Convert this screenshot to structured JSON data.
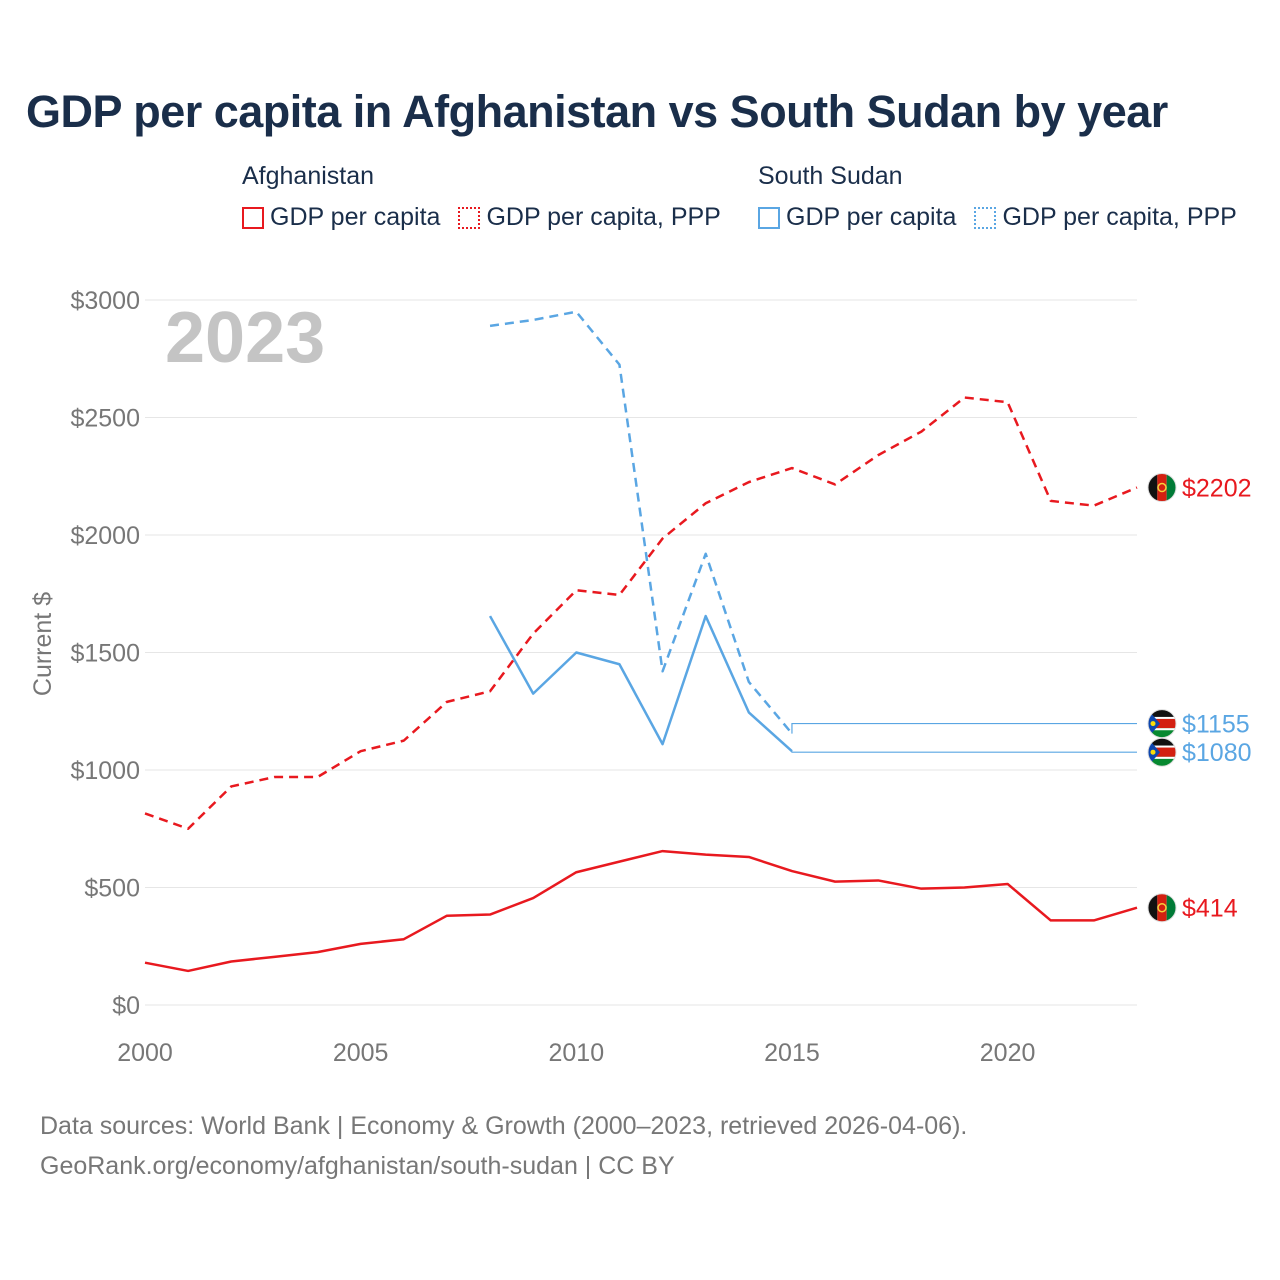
{
  "title": "GDP per capita in Afghanistan vs South Sudan by year",
  "legend": {
    "groups": [
      {
        "name": "Afghanistan",
        "color": "#e8191f",
        "items": [
          {
            "label": "GDP per capita",
            "style": "solid"
          },
          {
            "label": "GDP per capita, PPP",
            "style": "dotted"
          }
        ]
      },
      {
        "name": "South Sudan",
        "color": "#5aa6e3",
        "items": [
          {
            "label": "GDP per capita",
            "style": "solid"
          },
          {
            "label": "GDP per capita, PPP",
            "style": "dotted"
          }
        ]
      }
    ]
  },
  "chart_data": {
    "type": "line",
    "year_label": "2023",
    "ylabel": "Current $",
    "xlabel": "",
    "xlim": [
      2000,
      2023
    ],
    "ylim": [
      0,
      3000
    ],
    "x_ticks": [
      2000,
      2005,
      2010,
      2015,
      2020
    ],
    "y_ticks": [
      0,
      500,
      1000,
      1500,
      2000,
      2500,
      3000
    ],
    "y_tick_labels": [
      "$0",
      "$500",
      "$1000",
      "$1500",
      "$2000",
      "$2500",
      "$3000"
    ],
    "grid": true,
    "series": [
      {
        "name": "Afghanistan GDP per capita",
        "country": "Afghanistan",
        "dashed": false,
        "color": "#e8191f",
        "x": [
          2000,
          2001,
          2002,
          2003,
          2004,
          2005,
          2006,
          2007,
          2008,
          2009,
          2010,
          2011,
          2012,
          2013,
          2014,
          2015,
          2016,
          2017,
          2018,
          2019,
          2020,
          2021,
          2022,
          2023
        ],
        "values": [
          180,
          145,
          185,
          205,
          225,
          260,
          280,
          380,
          385,
          455,
          565,
          610,
          655,
          640,
          630,
          570,
          525,
          530,
          495,
          500,
          515,
          360,
          360,
          414
        ],
        "end_label": "$414",
        "flag": "afghanistan"
      },
      {
        "name": "Afghanistan GDP per capita, PPP",
        "country": "Afghanistan",
        "dashed": true,
        "color": "#e8191f",
        "x": [
          2000,
          2001,
          2002,
          2003,
          2004,
          2005,
          2006,
          2007,
          2008,
          2009,
          2010,
          2011,
          2012,
          2013,
          2014,
          2015,
          2016,
          2017,
          2018,
          2019,
          2020,
          2021,
          2022,
          2023
        ],
        "values": [
          815,
          750,
          930,
          970,
          970,
          1080,
          1125,
          1290,
          1335,
          1580,
          1765,
          1745,
          1985,
          2135,
          2225,
          2285,
          2215,
          2340,
          2440,
          2585,
          2565,
          2145,
          2125,
          2202
        ],
        "end_label": "$2202",
        "flag": "afghanistan"
      },
      {
        "name": "South Sudan GDP per capita",
        "country": "South Sudan",
        "dashed": false,
        "color": "#5aa6e3",
        "x": [
          2008,
          2009,
          2010,
          2011,
          2012,
          2013,
          2014,
          2015
        ],
        "values": [
          1655,
          1325,
          1500,
          1450,
          1110,
          1655,
          1245,
          1080
        ],
        "end_label": "$1080",
        "flag": "south-sudan"
      },
      {
        "name": "South Sudan GDP per capita, PPP",
        "country": "South Sudan",
        "dashed": true,
        "color": "#5aa6e3",
        "x": [
          2008,
          2009,
          2010,
          2011,
          2012,
          2013,
          2014,
          2015
        ],
        "values": [
          2890,
          2915,
          2950,
          2725,
          1420,
          1920,
          1375,
          1155
        ],
        "end_label": "$1155",
        "flag": "south-sudan"
      }
    ]
  },
  "footer": {
    "line1": "Data sources: World Bank | Economy & Growth (2000–2023, retrieved 2026-04-06).",
    "line2": "GeoRank.org/economy/afghanistan/south-sudan | CC BY"
  }
}
